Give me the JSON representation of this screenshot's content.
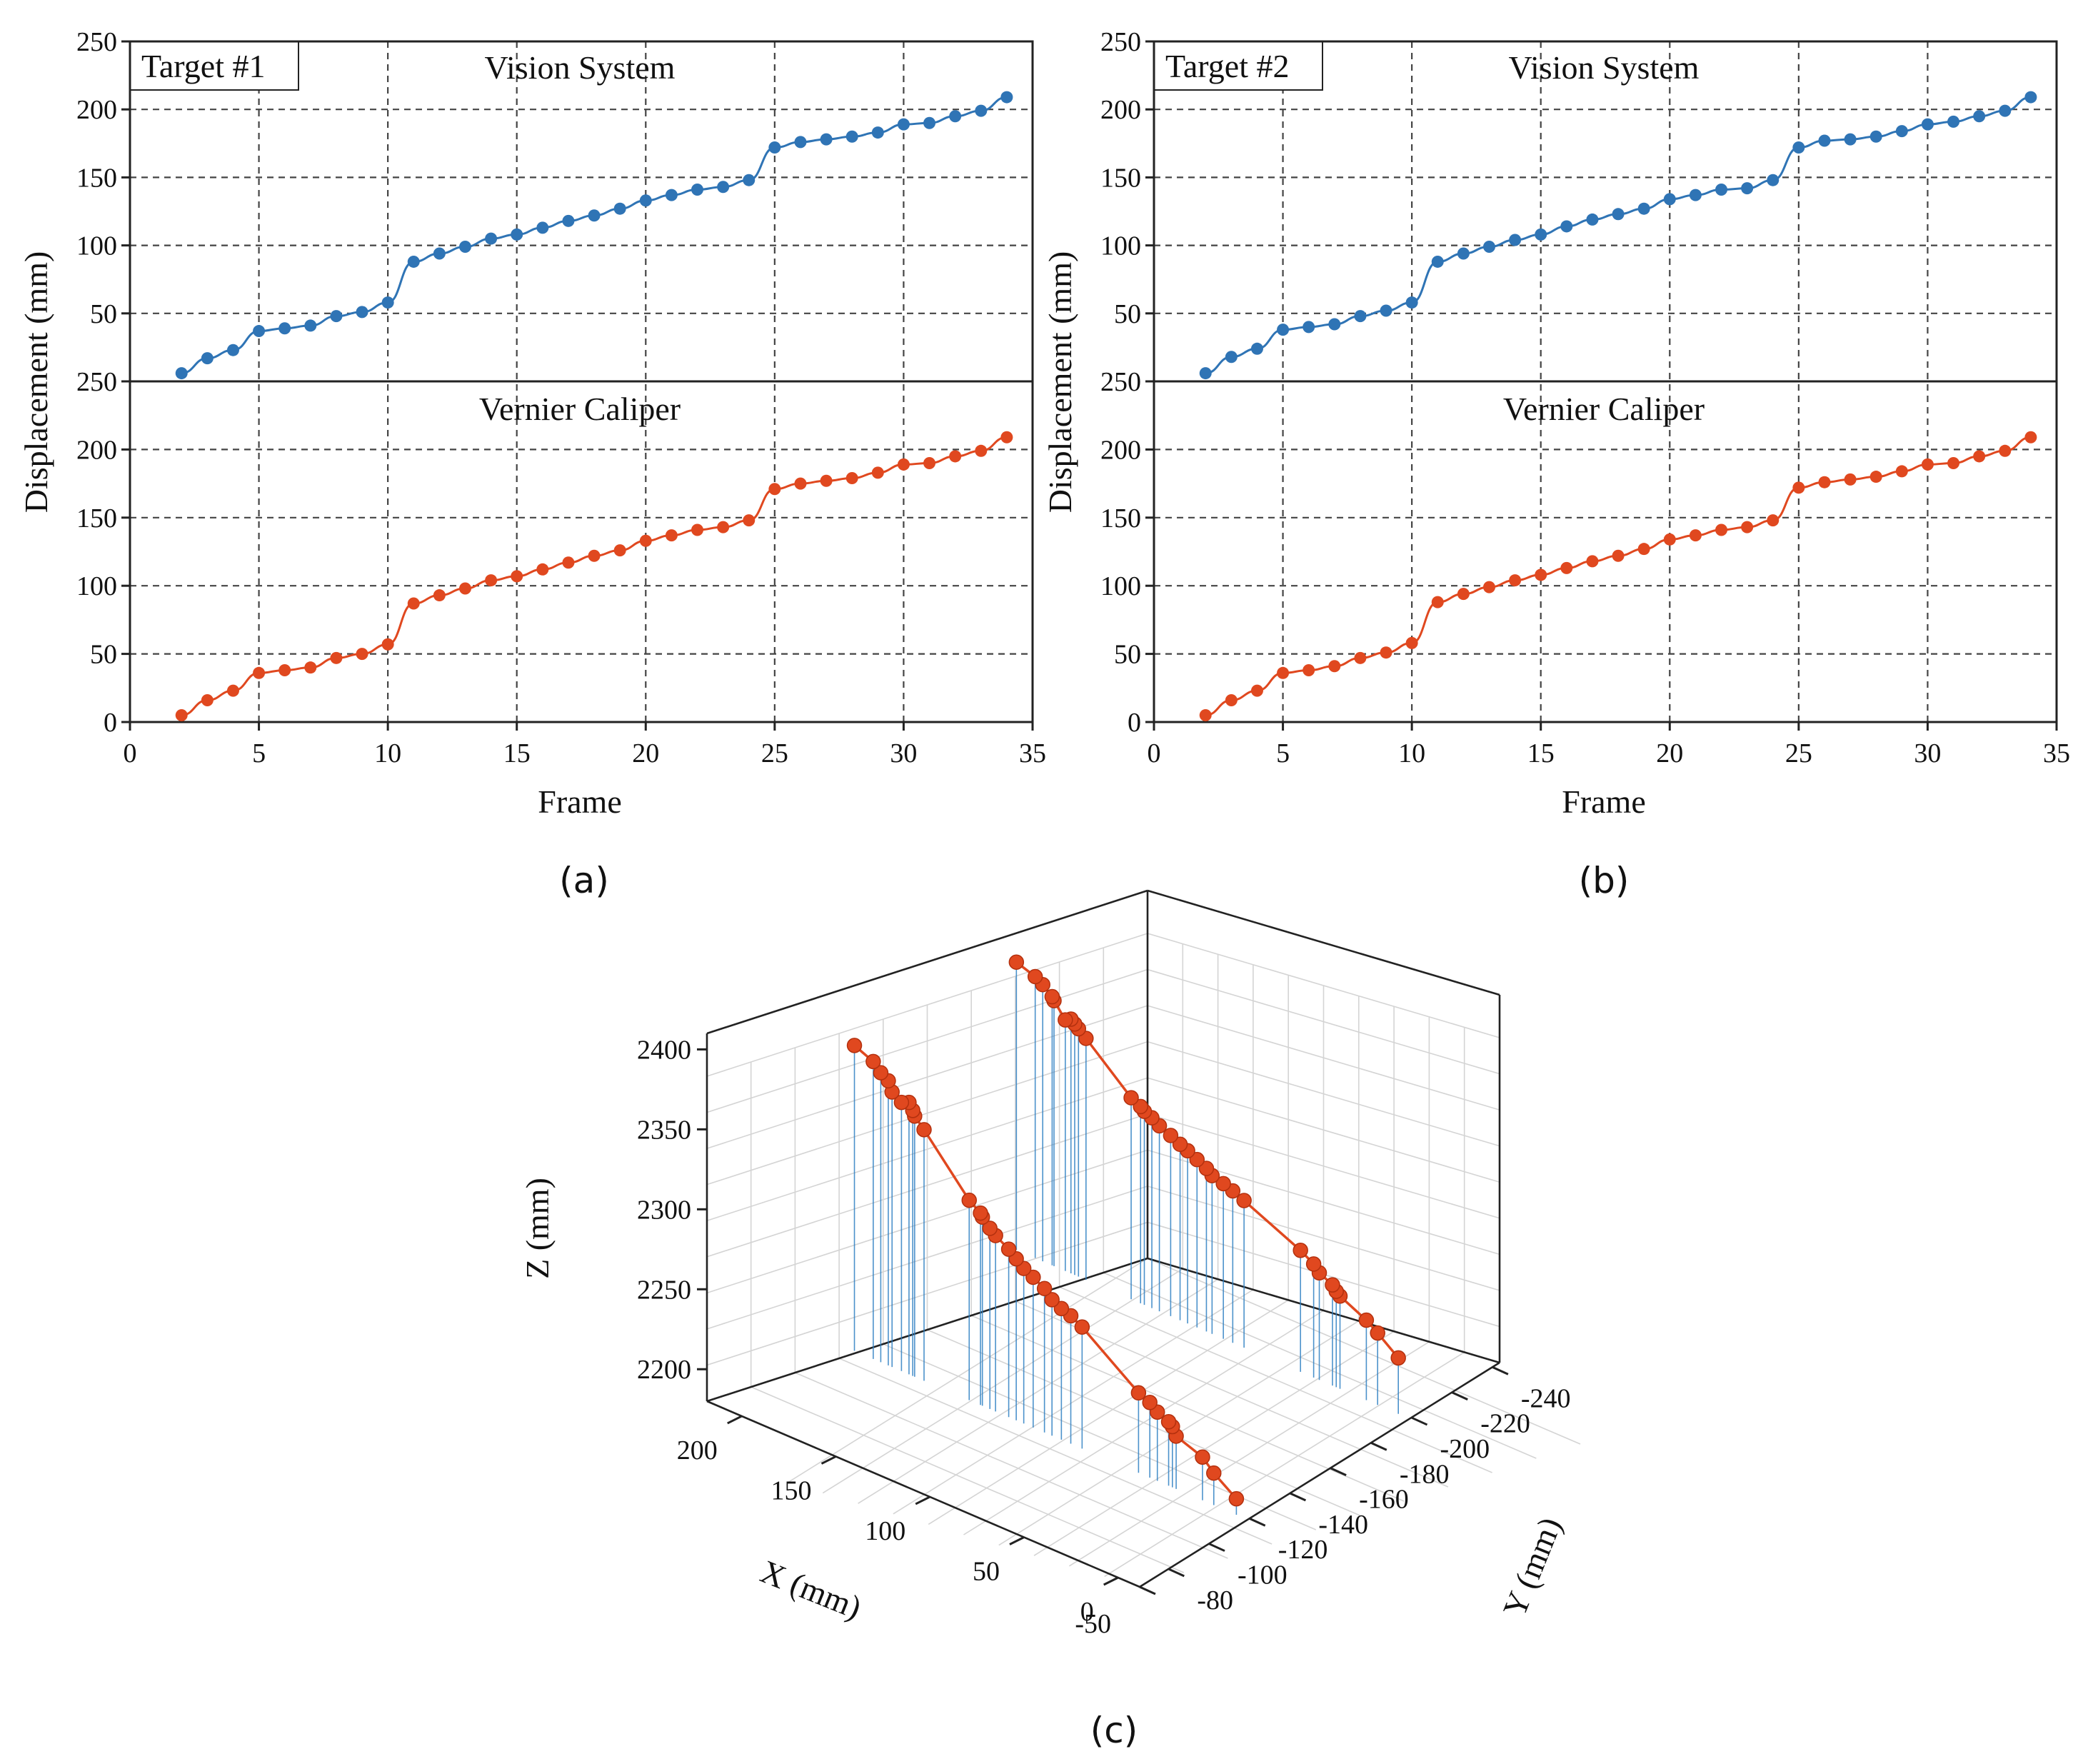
{
  "colors": {
    "vision": "#2f74b5",
    "caliper": "#e0481f",
    "marker3d": "#e0481f",
    "drop3d": "#2d7fc3"
  },
  "chart_data": [
    {
      "id": "a",
      "type": "line",
      "caption": "(a)",
      "xlabel": "Frame",
      "ylabel": "Displacement (mm)",
      "xlim": [
        0,
        35
      ],
      "ylim": [
        0,
        250
      ],
      "xticks": [
        "0",
        "5",
        "10",
        "15",
        "20",
        "25",
        "30",
        "35"
      ],
      "yticks_upper": [
        "50",
        "100",
        "150",
        "200",
        "250"
      ],
      "yticks_lower": [
        "0",
        "50",
        "100",
        "150",
        "200",
        "250"
      ],
      "grid": true,
      "legend": "Target #1",
      "x": [
        2,
        3,
        4,
        5,
        6,
        7,
        8,
        9,
        10,
        11,
        12,
        13,
        14,
        15,
        16,
        17,
        18,
        19,
        20,
        21,
        22,
        23,
        24,
        25,
        26,
        27,
        28,
        29,
        30,
        31,
        32,
        33,
        34
      ],
      "series": [
        {
          "name": "Vision System",
          "values": [
            6,
            17,
            23,
            37,
            39,
            41,
            48,
            51,
            58,
            88,
            94,
            99,
            105,
            108,
            113,
            118,
            122,
            127,
            133,
            137,
            141,
            143,
            148,
            172,
            176,
            178,
            180,
            183,
            189,
            190,
            195,
            199,
            209
          ]
        },
        {
          "name": "Vernier Caliper",
          "values": [
            5,
            16,
            23,
            36,
            38,
            40,
            47,
            50,
            57,
            87,
            93,
            98,
            104,
            107,
            112,
            117,
            122,
            126,
            133,
            137,
            141,
            143,
            148,
            171,
            175,
            177,
            179,
            183,
            189,
            190,
            195,
            199,
            209
          ]
        }
      ]
    },
    {
      "id": "b",
      "type": "line",
      "caption": "(b)",
      "xlabel": "Frame",
      "ylabel": "Displacement (mm)",
      "xlim": [
        0,
        35
      ],
      "ylim": [
        0,
        250
      ],
      "xticks": [
        "0",
        "5",
        "10",
        "15",
        "20",
        "25",
        "30",
        "35"
      ],
      "yticks_upper": [
        "50",
        "100",
        "150",
        "200",
        "250"
      ],
      "yticks_lower": [
        "0",
        "50",
        "100",
        "150",
        "200",
        "250"
      ],
      "grid": true,
      "legend": "Target #2",
      "x": [
        2,
        3,
        4,
        5,
        6,
        7,
        8,
        9,
        10,
        11,
        12,
        13,
        14,
        15,
        16,
        17,
        18,
        19,
        20,
        21,
        22,
        23,
        24,
        25,
        26,
        27,
        28,
        29,
        30,
        31,
        32,
        33,
        34
      ],
      "series": [
        {
          "name": "Vision System",
          "values": [
            6,
            18,
            24,
            38,
            40,
            42,
            48,
            52,
            58,
            88,
            94,
            99,
            104,
            108,
            114,
            119,
            123,
            127,
            134,
            137,
            141,
            142,
            148,
            172,
            177,
            178,
            180,
            184,
            189,
            191,
            195,
            199,
            209
          ]
        },
        {
          "name": "Vernier Caliper",
          "values": [
            5,
            16,
            23,
            36,
            38,
            41,
            47,
            51,
            58,
            88,
            94,
            99,
            104,
            108,
            113,
            118,
            122,
            127,
            134,
            137,
            141,
            143,
            148,
            172,
            176,
            178,
            180,
            184,
            189,
            190,
            195,
            199,
            209
          ]
        }
      ]
    },
    {
      "id": "c",
      "type": "scatter3d",
      "caption": "(c)",
      "xlabel": "X (mm)",
      "ylabel": "Y (mm)",
      "zlabel": "Z (mm)",
      "x_ticks": [
        "0",
        "50",
        "100",
        "150",
        "200"
      ],
      "y_ticks": [
        "-50",
        "-80",
        "-100",
        "-120",
        "-140",
        "-160",
        "-180",
        "-200",
        "-220",
        "-240"
      ],
      "z_ticks": [
        "2200",
        "2250",
        "2300",
        "2350",
        "2400"
      ],
      "zlim": [
        2180,
        2400
      ],
      "series": [
        {
          "name": "Target #1",
          "y": -200,
          "x": [
            6,
            17,
            23,
            37,
            39,
            41,
            48,
            51,
            58,
            88,
            94,
            99,
            105,
            108,
            113,
            118,
            122,
            127,
            133,
            137,
            141,
            143,
            148,
            172,
            176,
            178,
            180,
            183,
            189,
            190,
            195,
            199,
            209
          ],
          "z": [
            2215,
            2225,
            2230,
            2238,
            2240,
            2243,
            2247,
            2251,
            2256,
            2272,
            2275,
            2277,
            2279,
            2282,
            2285,
            2288,
            2290,
            2293,
            2296,
            2299,
            2301,
            2303,
            2306,
            2331,
            2335,
            2337,
            2339,
            2337,
            2346,
            2348,
            2353,
            2356,
            2360
          ]
        },
        {
          "name": "Target #2",
          "y": -110,
          "x": [
            6,
            18,
            24,
            38,
            40,
            42,
            48,
            52,
            58,
            88,
            94,
            99,
            104,
            108,
            114,
            119,
            123,
            127,
            134,
            137,
            141,
            142,
            148,
            172,
            177,
            178,
            180,
            184,
            189,
            191,
            195,
            199,
            209
          ],
          "z": [
            2190,
            2200,
            2207,
            2213,
            2218,
            2220,
            2223,
            2227,
            2230,
            2256,
            2260,
            2262,
            2265,
            2270,
            2274,
            2277,
            2281,
            2285,
            2290,
            2293,
            2298,
            2300,
            2305,
            2337,
            2343,
            2346,
            2350,
            2348,
            2352,
            2358,
            2361,
            2366,
            2371
          ]
        }
      ]
    }
  ]
}
